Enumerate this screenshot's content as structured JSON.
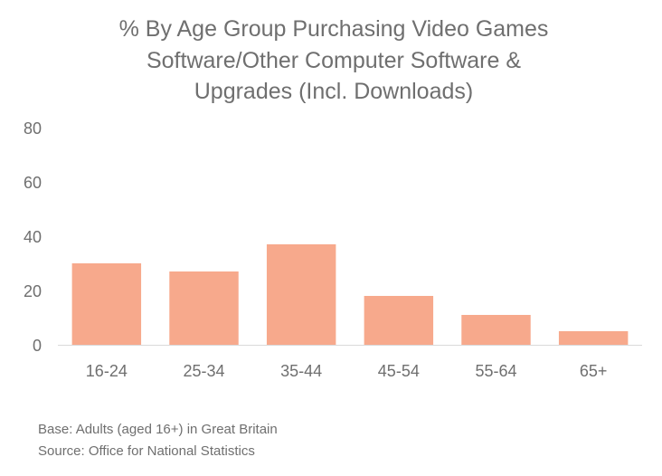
{
  "chart_data": {
    "type": "bar",
    "title_lines": [
      "% By Age Group Purchasing Video Games",
      "Software/Other Computer Software &",
      "Upgrades (Incl. Downloads)"
    ],
    "categories": [
      "16-24",
      "25-34",
      "35-44",
      "45-54",
      "55-64",
      "65+"
    ],
    "values": [
      30,
      27,
      37,
      18,
      11,
      5
    ],
    "yticks": [
      "0",
      "20",
      "40",
      "60",
      "80"
    ],
    "ylim": [
      0,
      80
    ],
    "grid": false,
    "bar_color": "#f7a98c",
    "notes": [
      "Base: Adults (aged 16+) in Great Britain",
      "Source: Office for National Statistics"
    ]
  }
}
